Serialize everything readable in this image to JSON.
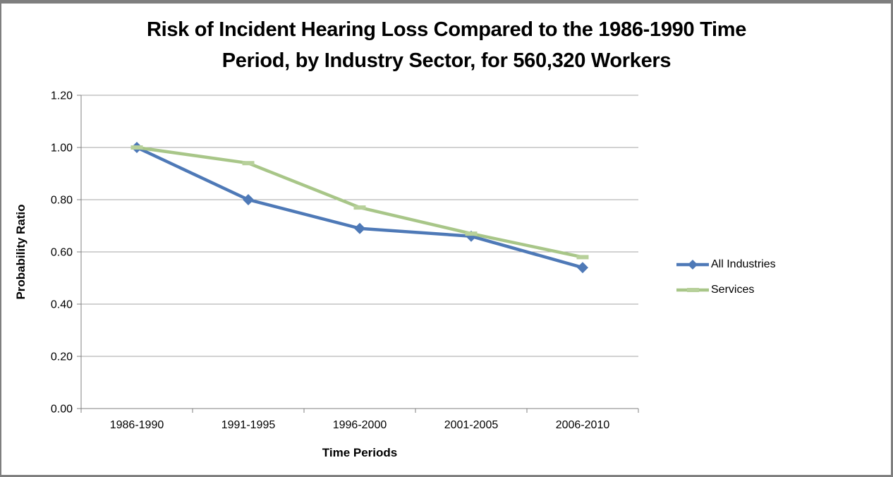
{
  "frame": {
    "border_color": "#7F7F7F",
    "background_color": "#FFFFFF"
  },
  "chart_data": {
    "type": "line",
    "title": "Risk of Incident Hearing Loss Compared to the 1986-1990 Time Period, by Industry Sector, for 560,320 Workers",
    "title_lines": [
      "Risk of Incident Hearing Loss Compared to the 1986-1990 Time",
      "Period, by Industry Sector, for 560,320 Workers"
    ],
    "xlabel": "Time Periods",
    "ylabel": "Probability Ratio",
    "categories": [
      "1986-1990",
      "1991-1995",
      "1996-2000",
      "2001-2005",
      "2006-2010"
    ],
    "series": [
      {
        "name": "All Industries",
        "values": [
          1.0,
          0.8,
          0.69,
          0.66,
          0.54
        ],
        "color": "#4E79B7",
        "marker": "diamond"
      },
      {
        "name": "Services",
        "values": [
          1.0,
          0.94,
          0.77,
          0.67,
          0.58
        ],
        "color": "#A8C688",
        "marker": "dash",
        "marker_color": "#B7D09A"
      }
    ],
    "ylim": [
      0.0,
      1.2
    ],
    "yticks": [
      "0.00",
      "0.20",
      "0.40",
      "0.60",
      "0.80",
      "1.00",
      "1.20"
    ],
    "grid": true,
    "legend_position": "right",
    "colors": {
      "gridline": "#A6A6A6",
      "axis": "#808080",
      "text": "#000000"
    }
  }
}
